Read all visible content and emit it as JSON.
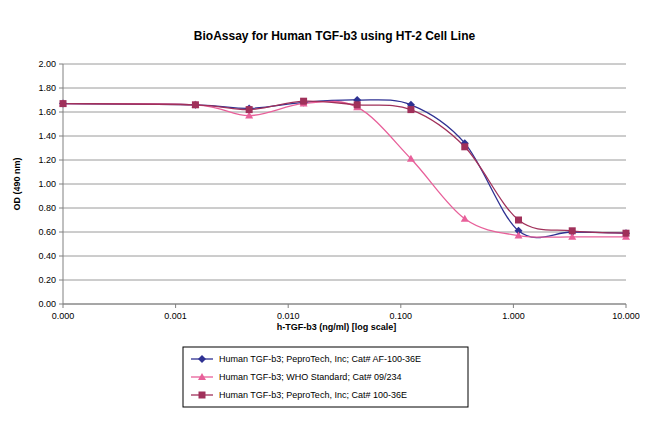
{
  "chart_data": {
    "type": "line",
    "title": "BioAssay for Human TGF-b3 using HT-2 Cell Line",
    "x_label": "h-TGF-b3 (ng/ml) [log scale]",
    "y_label": "OD (490 nm)",
    "log": "x",
    "grid": true,
    "legend": "bottom",
    "line_style": "smooth",
    "x": [
      0.0001,
      0.0015,
      0.0045,
      0.0137,
      0.041,
      0.123,
      0.37,
      1.11,
      3.33,
      10
    ],
    "xlim": [
      0.0001,
      10
    ],
    "xticks": [
      {
        "value": 0.0001,
        "label": "0.000"
      },
      {
        "value": 0.001,
        "label": "0.001"
      },
      {
        "value": 0.01,
        "label": "0.010"
      },
      {
        "value": 0.1,
        "label": "0.100"
      },
      {
        "value": 1,
        "label": "1.000"
      },
      {
        "value": 10,
        "label": "10.000"
      }
    ],
    "ylim": [
      0,
      2
    ],
    "yticks": [
      {
        "value": 0,
        "label": "0.00"
      },
      {
        "value": 0.2,
        "label": "0.20"
      },
      {
        "value": 0.4,
        "label": "0.40"
      },
      {
        "value": 0.6,
        "label": "0.60"
      },
      {
        "value": 0.8,
        "label": "0.80"
      },
      {
        "value": 1.0,
        "label": "1.00"
      },
      {
        "value": 1.2,
        "label": "1.20"
      },
      {
        "value": 1.4,
        "label": "1.40"
      },
      {
        "value": 1.6,
        "label": "1.60"
      },
      {
        "value": 1.8,
        "label": "1.80"
      },
      {
        "value": 2.0,
        "label": "2.00"
      }
    ],
    "series": [
      {
        "name": "Human TGF-b3; PeproTech, Inc; Cat# AF-100-36E",
        "color": "#2E3192",
        "marker": "diamond",
        "values": [
          1.67,
          1.66,
          1.63,
          1.68,
          1.7,
          1.66,
          1.34,
          0.61,
          0.6,
          0.59
        ]
      },
      {
        "name": "Human TGF-b3; WHO Standard; Cat# 09/234",
        "color": "#E8609A",
        "marker": "triangle",
        "values": [
          1.67,
          1.66,
          1.57,
          1.67,
          1.64,
          1.21,
          0.71,
          0.57,
          0.56,
          0.56
        ]
      },
      {
        "name": "Human TGF-b3; PeproTech, Inc; Cat# 100-36E",
        "color": "#A0305A",
        "marker": "square",
        "values": [
          1.67,
          1.66,
          1.62,
          1.69,
          1.66,
          1.62,
          1.31,
          0.7,
          0.61,
          0.59
        ]
      }
    ]
  }
}
